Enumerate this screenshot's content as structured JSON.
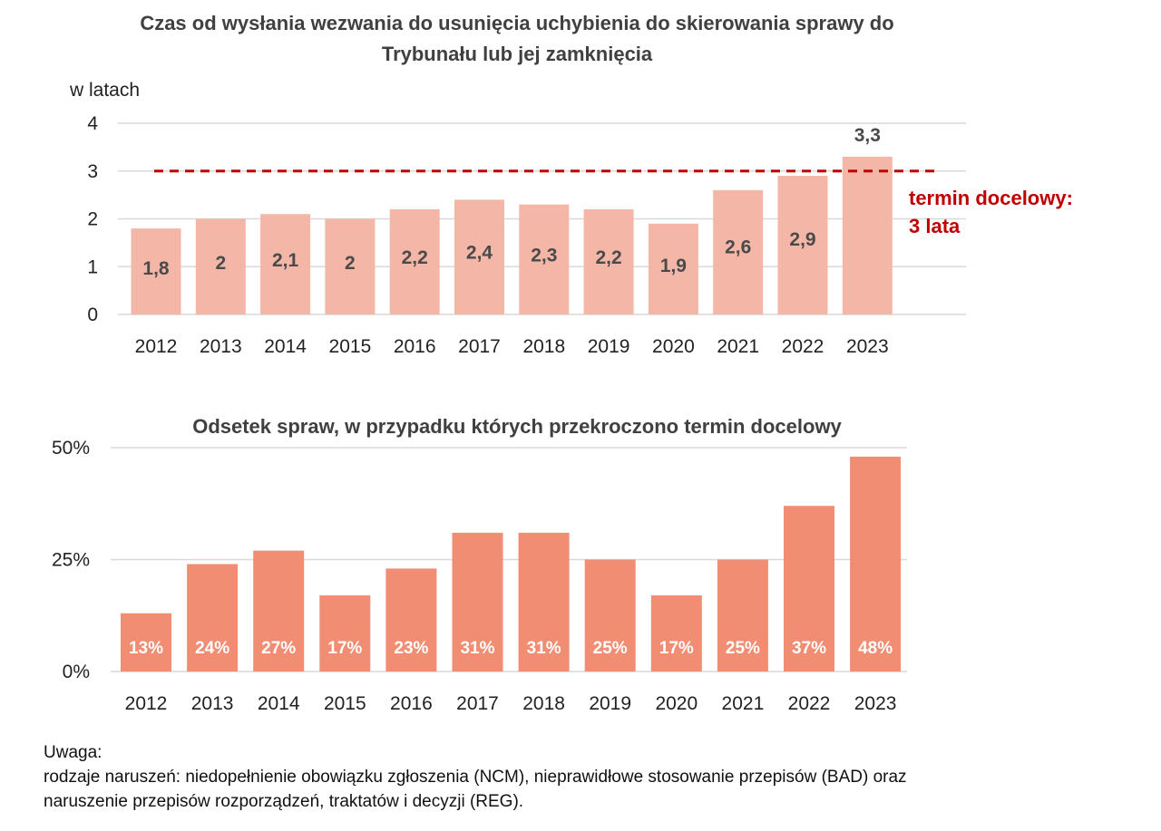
{
  "chart_data": [
    {
      "type": "bar",
      "title_line1": "Czas od wysłania wezwania do usunięcia uchybienia do skierowania sprawy do",
      "title_line2": "Trybunału lub jej zamknięcia",
      "ylabel": "w latach",
      "categories": [
        "2012",
        "2013",
        "2014",
        "2015",
        "2016",
        "2017",
        "2018",
        "2019",
        "2020",
        "2021",
        "2022",
        "2023"
      ],
      "values": [
        1.8,
        2.0,
        2.1,
        2.0,
        2.2,
        2.4,
        2.3,
        2.2,
        1.9,
        2.6,
        2.9,
        3.3
      ],
      "data_labels": [
        "1,8",
        "2",
        "2,1",
        "2",
        "2,2",
        "2,4",
        "2,3",
        "2,2",
        "1,9",
        "2,6",
        "2,9",
        "3,3"
      ],
      "ylim": [
        0,
        4
      ],
      "yticks": [
        "0",
        "1",
        "2",
        "3",
        "4"
      ],
      "grid": true,
      "target": {
        "value": 3,
        "label_line1": "termin docelowy:",
        "label_line2": "3 lata",
        "color": "#c00000"
      },
      "bar_color": "#f4b6a6"
    },
    {
      "type": "bar",
      "title": "Odsetek spraw, w przypadku których przekroczono termin docelowy",
      "categories": [
        "2012",
        "2013",
        "2014",
        "2015",
        "2016",
        "2017",
        "2018",
        "2019",
        "2020",
        "2021",
        "2022",
        "2023"
      ],
      "values": [
        13,
        24,
        27,
        17,
        23,
        31,
        31,
        25,
        17,
        25,
        37,
        48
      ],
      "data_labels": [
        "13%",
        "24%",
        "27%",
        "17%",
        "23%",
        "31%",
        "31%",
        "25%",
        "17%",
        "25%",
        "37%",
        "48%"
      ],
      "ylim": [
        0,
        50
      ],
      "yticks": [
        "0%",
        "25%",
        "50%"
      ],
      "grid": true,
      "bar_color": "#f08d73"
    }
  ],
  "note": {
    "heading": "Uwaga:",
    "line1": "rodzaje naruszeń: niedopełnienie obowiązku zgłoszenia (NCM), nieprawidłowe stosowanie przepisów (BAD) oraz",
    "line2": "naruszenie przepisów rozporządzeń, traktatów i decyzji (REG)."
  }
}
